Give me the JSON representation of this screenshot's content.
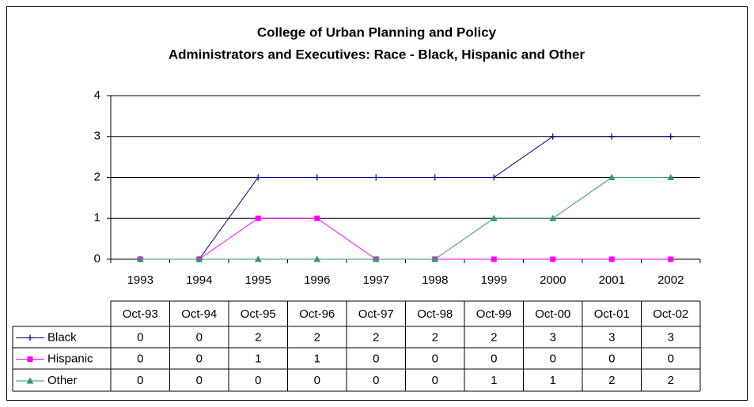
{
  "chart_data": {
    "type": "line",
    "title": "College of Urban Planning and Policy",
    "subtitle": "Administrators and Executives: Race - Black, Hispanic and Other",
    "categories": [
      "1993",
      "1994",
      "1995",
      "1996",
      "1997",
      "1998",
      "1999",
      "2000",
      "2001",
      "2002"
    ],
    "table_headers": [
      "Oct-93",
      "Oct-94",
      "Oct-95",
      "Oct-96",
      "Oct-97",
      "Oct-98",
      "Oct-99",
      "Oct-00",
      "Oct-01",
      "Oct-02"
    ],
    "series": [
      {
        "name": "Black",
        "color": "#000080",
        "marker": "plus",
        "values": [
          0,
          0,
          2,
          2,
          2,
          2,
          2,
          3,
          3,
          3
        ]
      },
      {
        "name": "Hispanic",
        "color": "#ff00ff",
        "marker": "square",
        "values": [
          0,
          0,
          1,
          1,
          0,
          0,
          0,
          0,
          0,
          0
        ]
      },
      {
        "name": "Other",
        "color": "#339966",
        "marker": "triangle",
        "values": [
          0,
          0,
          0,
          0,
          0,
          0,
          1,
          1,
          2,
          2
        ]
      }
    ],
    "ylim": [
      0,
      4
    ],
    "yticks": [
      0,
      1,
      2,
      3,
      4
    ],
    "grid": true
  }
}
